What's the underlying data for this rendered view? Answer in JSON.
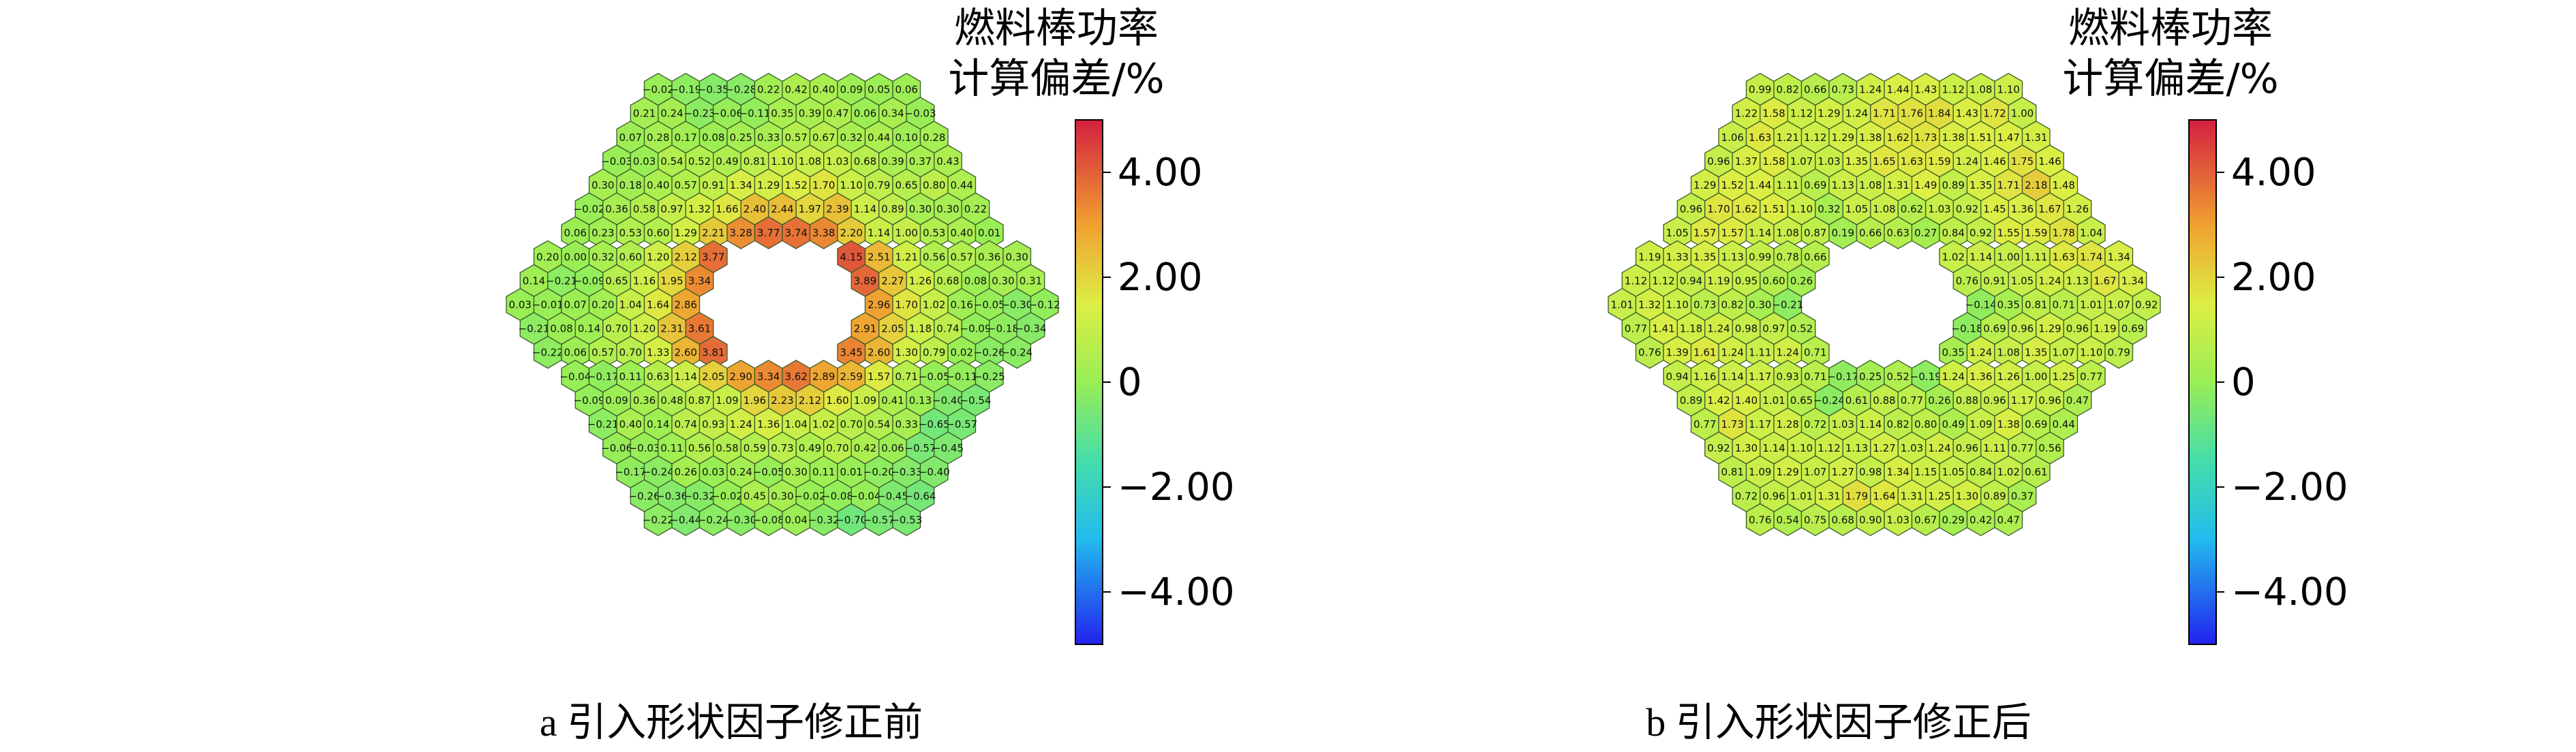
{
  "panels": [
    {
      "caption": "a  引入形状因子修正前",
      "colorbar_title": [
        "燃料棒功率",
        "计算偏差/%"
      ],
      "colorbar_ticks": [
        "4.00",
        "2.00",
        "0",
        "−2.00",
        "−4.00"
      ]
    },
    {
      "caption": "b  引入形状因子修正后",
      "colorbar_title": [
        "燃料棒功率",
        "计算偏差/%"
      ],
      "colorbar_ticks": [
        "4.00",
        "2.00",
        "0",
        "−2.00",
        "−4.00"
      ]
    }
  ],
  "chart_data": [
    {
      "type": "heatmap",
      "layout": "hexagonal",
      "title": "a  引入形状因子修正前",
      "colorbar_label": "燃料棒功率计算偏差/%",
      "colorbar_range": [
        -5,
        5
      ],
      "colorbar_ticks": [
        4,
        2,
        0,
        -2,
        -4
      ],
      "rows": [
        [
          -0.02,
          -0.19,
          -0.35,
          -0.28,
          0.22,
          0.42,
          0.4,
          0.09,
          0.05,
          0.06
        ],
        [
          0.21,
          0.24,
          -0.23,
          -0.06,
          -0.11,
          0.35,
          0.39,
          0.47,
          0.06,
          0.34,
          -0.03
        ],
        [
          0.07,
          0.28,
          0.17,
          0.08,
          0.25,
          0.33,
          0.57,
          0.67,
          0.32,
          0.44,
          0.1,
          0.28
        ],
        [
          -0.03,
          0.03,
          0.54,
          0.52,
          0.49,
          0.81,
          1.1,
          1.08,
          1.03,
          0.68,
          0.39,
          0.37,
          0.43
        ],
        [
          0.3,
          0.18,
          0.4,
          0.57,
          0.91,
          1.34,
          1.29,
          1.52,
          1.7,
          1.1,
          0.79,
          0.65,
          0.8,
          0.44
        ],
        [
          -0.02,
          0.36,
          0.58,
          0.97,
          1.32,
          1.66,
          2.4,
          2.44,
          1.97,
          2.39,
          1.14,
          0.89,
          0.3,
          0.3,
          0.22
        ],
        [
          0.06,
          0.23,
          0.53,
          0.6,
          1.29,
          2.21,
          3.28,
          3.77,
          3.74,
          3.38,
          2.2,
          1.14,
          1.0,
          0.53,
          0.4,
          0.01
        ],
        [
          0.2,
          0.0,
          0.32,
          0.6,
          1.2,
          2.12,
          3.77,
          null,
          null,
          null,
          null,
          4.15,
          2.51,
          1.21,
          0.56,
          0.57,
          0.36,
          0.3
        ],
        [
          0.14,
          -0.21,
          -0.09,
          0.65,
          1.16,
          1.95,
          3.34,
          null,
          null,
          null,
          null,
          null,
          3.89,
          2.27,
          1.26,
          0.68,
          0.08,
          0.3,
          0.31
        ],
        [
          0.03,
          -0.01,
          0.07,
          0.2,
          1.04,
          1.64,
          2.86,
          null,
          null,
          null,
          null,
          null,
          null,
          2.96,
          1.7,
          1.02,
          0.16,
          -0.05,
          -0.3,
          -0.12
        ],
        [
          -0.21,
          0.08,
          0.14,
          0.7,
          1.2,
          2.31,
          3.61,
          null,
          null,
          null,
          null,
          null,
          2.91,
          2.05,
          1.18,
          0.74,
          -0.09,
          -0.18,
          -0.34
        ],
        [
          -0.22,
          0.06,
          0.57,
          0.7,
          1.33,
          2.6,
          3.81,
          null,
          null,
          null,
          null,
          3.45,
          2.6,
          1.3,
          0.79,
          0.02,
          -0.26,
          -0.24
        ],
        [
          -0.04,
          -0.17,
          0.11,
          0.63,
          1.14,
          2.05,
          2.9,
          3.34,
          3.62,
          2.89,
          2.59,
          1.57,
          0.71,
          -0.05,
          -0.11,
          -0.25
        ],
        [
          -0.09,
          0.09,
          0.36,
          0.48,
          0.87,
          1.09,
          1.96,
          2.23,
          2.12,
          1.6,
          1.09,
          0.41,
          0.13,
          -0.4,
          -0.54
        ],
        [
          -0.21,
          0.4,
          0.14,
          0.74,
          0.93,
          1.24,
          1.36,
          1.04,
          1.02,
          0.7,
          0.54,
          0.33,
          -0.65,
          -0.57
        ],
        [
          -0.06,
          -0.03,
          0.11,
          0.56,
          0.58,
          0.59,
          0.73,
          0.49,
          0.7,
          0.42,
          0.06,
          -0.57,
          -0.45
        ],
        [
          -0.17,
          -0.24,
          0.26,
          0.03,
          0.24,
          -0.05,
          0.3,
          0.11,
          0.01,
          -0.2,
          -0.33,
          -0.4
        ],
        [
          -0.26,
          -0.36,
          -0.32,
          -0.02,
          0.45,
          0.3,
          -0.02,
          -0.08,
          -0.04,
          -0.45,
          -0.64
        ],
        [
          -0.22,
          -0.44,
          -0.24,
          -0.3,
          -0.08,
          0.04,
          -0.32,
          -0.7,
          -0.57,
          -0.53
        ]
      ]
    },
    {
      "type": "heatmap",
      "layout": "hexagonal",
      "title": "b  引入形状因子修正后",
      "colorbar_label": "燃料棒功率计算偏差/%",
      "colorbar_range": [
        -5,
        5
      ],
      "colorbar_ticks": [
        4,
        2,
        0,
        -2,
        -4
      ],
      "rows": [
        [
          0.99,
          0.82,
          0.66,
          0.73,
          1.24,
          1.44,
          1.43,
          1.12,
          1.08,
          1.1
        ],
        [
          1.22,
          1.58,
          1.12,
          1.29,
          1.24,
          1.71,
          1.76,
          1.84,
          1.43,
          1.72,
          1.0
        ],
        [
          1.06,
          1.63,
          1.21,
          1.12,
          1.29,
          1.38,
          1.62,
          1.73,
          1.38,
          1.51,
          1.47,
          1.31
        ],
        [
          0.96,
          1.37,
          1.58,
          1.07,
          1.03,
          1.35,
          1.65,
          1.63,
          1.59,
          1.24,
          1.46,
          1.75,
          1.46
        ],
        [
          1.29,
          1.52,
          1.44,
          1.11,
          0.69,
          1.13,
          1.08,
          1.31,
          1.49,
          0.89,
          1.35,
          1.71,
          2.18,
          1.48
        ],
        [
          0.96,
          1.7,
          1.62,
          1.51,
          1.1,
          0.32,
          1.05,
          1.08,
          0.62,
          1.03,
          0.92,
          1.45,
          1.36,
          1.67,
          1.26
        ],
        [
          1.05,
          1.57,
          1.57,
          1.14,
          1.08,
          0.87,
          0.19,
          0.66,
          0.63,
          0.27,
          0.84,
          0.92,
          1.55,
          1.59,
          1.78,
          1.04
        ],
        [
          1.19,
          1.33,
          1.35,
          1.13,
          0.99,
          0.78,
          0.66,
          null,
          null,
          null,
          null,
          1.02,
          1.14,
          1.0,
          1.11,
          1.63,
          1.74,
          1.34
        ],
        [
          1.12,
          1.12,
          0.94,
          1.19,
          0.95,
          0.6,
          0.26,
          null,
          null,
          null,
          null,
          null,
          0.76,
          0.91,
          1.05,
          1.24,
          1.13,
          1.67,
          1.34
        ],
        [
          1.01,
          1.32,
          1.1,
          0.73,
          0.82,
          0.3,
          -0.21,
          null,
          null,
          null,
          null,
          null,
          null,
          -0.14,
          0.35,
          0.81,
          0.71,
          1.01,
          1.07,
          0.92
        ],
        [
          0.77,
          1.41,
          1.18,
          1.24,
          0.98,
          0.97,
          0.52,
          null,
          null,
          null,
          null,
          null,
          -0.18,
          0.69,
          0.96,
          1.29,
          0.96,
          1.19,
          0.69
        ],
        [
          0.76,
          1.39,
          1.61,
          1.24,
          1.11,
          1.24,
          0.71,
          null,
          null,
          null,
          null,
          0.35,
          1.24,
          1.08,
          1.35,
          1.07,
          1.1,
          0.79
        ],
        [
          0.94,
          1.16,
          1.14,
          1.17,
          0.93,
          0.71,
          -0.17,
          0.25,
          0.52,
          -0.19,
          1.24,
          1.36,
          1.26,
          1.0,
          1.25,
          0.77
        ],
        [
          0.89,
          1.42,
          1.4,
          1.01,
          0.65,
          -0.24,
          0.61,
          0.88,
          0.77,
          0.26,
          0.88,
          0.96,
          1.17,
          0.96,
          0.47
        ],
        [
          0.77,
          1.73,
          1.17,
          1.28,
          0.72,
          1.03,
          1.14,
          0.82,
          0.8,
          0.49,
          1.09,
          1.38,
          0.69,
          0.44
        ],
        [
          0.92,
          1.3,
          1.14,
          1.1,
          1.12,
          1.13,
          1.27,
          1.03,
          1.24,
          0.96,
          1.11,
          0.77,
          0.56
        ],
        [
          0.81,
          1.09,
          1.29,
          1.07,
          1.27,
          0.98,
          1.34,
          1.15,
          1.05,
          0.84,
          1.02,
          0.61
        ],
        [
          0.72,
          0.96,
          1.01,
          1.31,
          1.79,
          1.64,
          1.31,
          1.25,
          1.3,
          0.89,
          0.37
        ],
        [
          0.76,
          0.54,
          0.75,
          0.68,
          0.9,
          1.03,
          0.67,
          0.29,
          0.42,
          0.47
        ]
      ]
    }
  ]
}
